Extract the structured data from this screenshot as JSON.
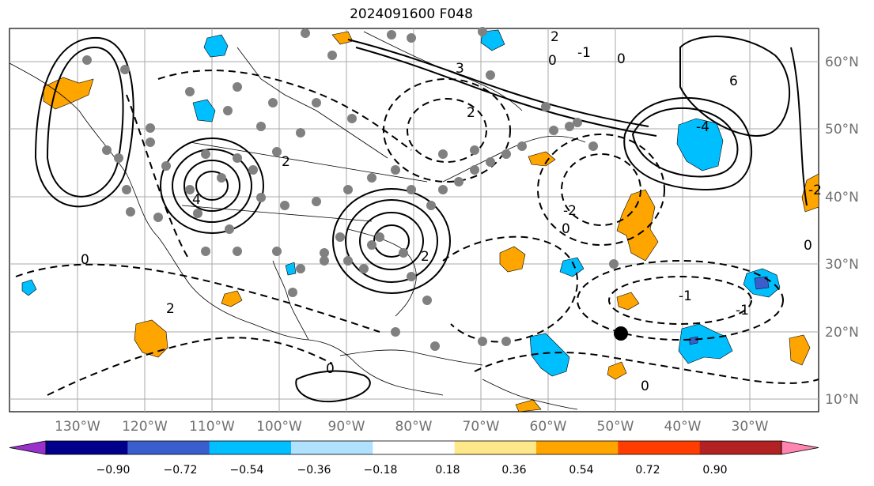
{
  "title": "2024091600 F048",
  "longitude_labels": [
    "130°W",
    "120°W",
    "110°W",
    "100°W",
    "90°W",
    "80°W",
    "70°W",
    "60°W",
    "50°W",
    "40°W",
    "30°W"
  ],
  "latitude_labels": [
    "60°N",
    "50°N",
    "40°N",
    "30°N",
    "20°N",
    "10°N"
  ],
  "colorbar": {
    "ticks": [
      "−0.90",
      "−0.72",
      "−0.54",
      "−0.36",
      "−0.18",
      "0.18",
      "0.36",
      "0.54",
      "0.72",
      "0.90"
    ],
    "colors": [
      "#9932cc",
      "#00008b",
      "#3a5fcd",
      "#00bfff",
      "#b0e2ff",
      "#ffffff",
      "#ffe88a",
      "#ffa500",
      "#ff3d00",
      "#b22222",
      "#ff85b0"
    ]
  },
  "contour_labels": [
    "0",
    "2",
    "3",
    "4",
    "6",
    "-1",
    "-2",
    "-4"
  ],
  "fills": {
    "positive": "#ffa500",
    "negative": "#00bfff",
    "strong_negative": "#3a5fcd"
  },
  "marker_color": "#808080"
}
